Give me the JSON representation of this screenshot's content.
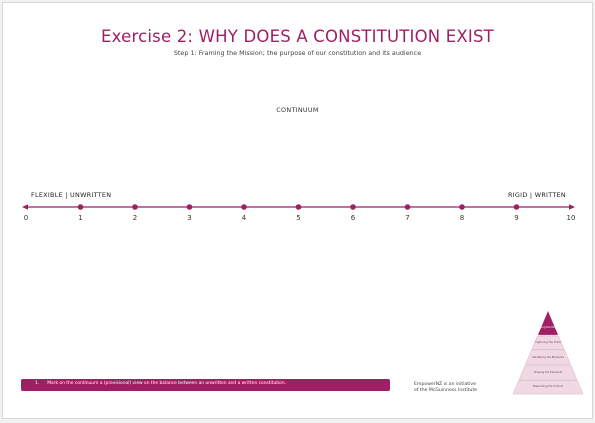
{
  "header": {
    "title": "Exercise 2: WHY DOES A CONSTITUTION EXIST",
    "subtitle": "Step 1: Framing the Mission; the purpose of our constitution and its audience"
  },
  "continuum": {
    "label": "CONTINUUM",
    "left_end": "FLEXIBLE  |  UNWRITTEN",
    "right_end": "RIGID  |  WRITTEN",
    "ticks": [
      "0",
      "1",
      "2",
      "3",
      "4",
      "5",
      "6",
      "7",
      "8",
      "9",
      "10"
    ]
  },
  "instruction": {
    "number": "1.",
    "text": "Mark on the continuum a (provisional) view on the balance between an unwritten and a written constitution."
  },
  "credit": {
    "line1": "EmpowerNZ is an initiative",
    "line2": "of the McGuinness Institute"
  },
  "pyramid": {
    "levels": [
      "Framing the Mission",
      "Capturing the Finite",
      "Identifying the Elements",
      "Shaping the Elements",
      "Stewarding the Product"
    ],
    "colors": {
      "top": "#9e1f63",
      "lower": "#f1d9e4",
      "edge": "#c9a0b6"
    }
  },
  "colors": {
    "accent": "#9e1f63"
  }
}
